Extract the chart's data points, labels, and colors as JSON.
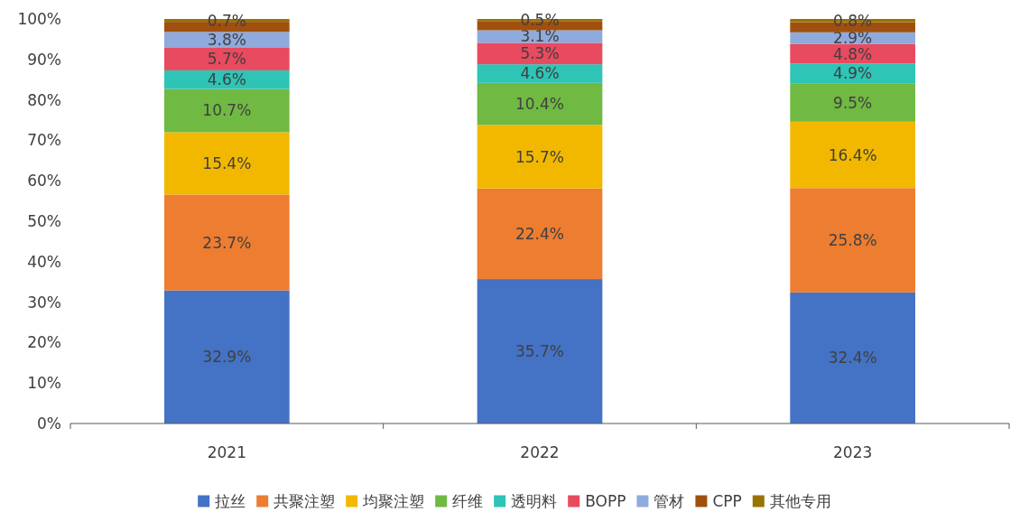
{
  "chart_data": {
    "type": "bar",
    "stacked": true,
    "categories": [
      "2021",
      "2022",
      "2023"
    ],
    "series": [
      {
        "name": "拉丝",
        "color": "#4472c4",
        "values": [
          32.9,
          35.7,
          32.4
        ],
        "value_labels": [
          "32.9%",
          "35.7%",
          "32.4%"
        ]
      },
      {
        "name": "共聚注塑",
        "color": "#ed7d31",
        "values": [
          23.7,
          22.4,
          25.8
        ],
        "value_labels": [
          "23.7%",
          "22.4%",
          "25.8%"
        ]
      },
      {
        "name": "均聚注塑",
        "color": "#f2b800",
        "values": [
          15.4,
          15.7,
          16.4
        ],
        "value_labels": [
          "15.4%",
          "15.7%",
          "16.4%"
        ]
      },
      {
        "name": "纤维",
        "color": "#70b942",
        "values": [
          10.7,
          10.4,
          9.5
        ],
        "value_labels": [
          "10.7%",
          "10.4%",
          "9.5%"
        ]
      },
      {
        "name": "透明料",
        "color": "#2ec4b6",
        "values": [
          4.6,
          4.6,
          4.9
        ],
        "value_labels": [
          "4.6%",
          "4.6%",
          "4.9%"
        ]
      },
      {
        "name": "BOPP",
        "color": "#e84a5f",
        "values": [
          5.7,
          5.3,
          4.8
        ],
        "value_labels": [
          "5.7%",
          "5.3%",
          "4.8%"
        ]
      },
      {
        "name": "管材",
        "color": "#8faadc",
        "values": [
          3.8,
          3.1,
          2.9
        ],
        "value_labels": [
          "3.8%",
          "3.1%",
          "2.9%"
        ]
      },
      {
        "name": "CPP",
        "color": "#a0500e",
        "values": [
          2.5,
          2.3,
          2.5
        ]
      },
      {
        "name": "其他专用",
        "color": "#997300",
        "values": [
          0.7,
          0.5,
          0.8
        ],
        "value_labels": [
          "0.7%",
          "0.5%",
          "0.8%"
        ]
      }
    ],
    "ylim": [
      0,
      100
    ],
    "yticks": [
      {
        "value": 0,
        "label": "0%"
      },
      {
        "value": 10,
        "label": "10%"
      },
      {
        "value": 20,
        "label": "20%"
      },
      {
        "value": 30,
        "label": "30%"
      },
      {
        "value": 40,
        "label": "40%"
      },
      {
        "value": 50,
        "label": "50%"
      },
      {
        "value": 60,
        "label": "60%"
      },
      {
        "value": 70,
        "label": "70%"
      },
      {
        "value": 80,
        "label": "80%"
      },
      {
        "value": 90,
        "label": "90%"
      },
      {
        "value": 100,
        "label": "100%"
      }
    ],
    "grid": false,
    "legend": "bottom"
  }
}
